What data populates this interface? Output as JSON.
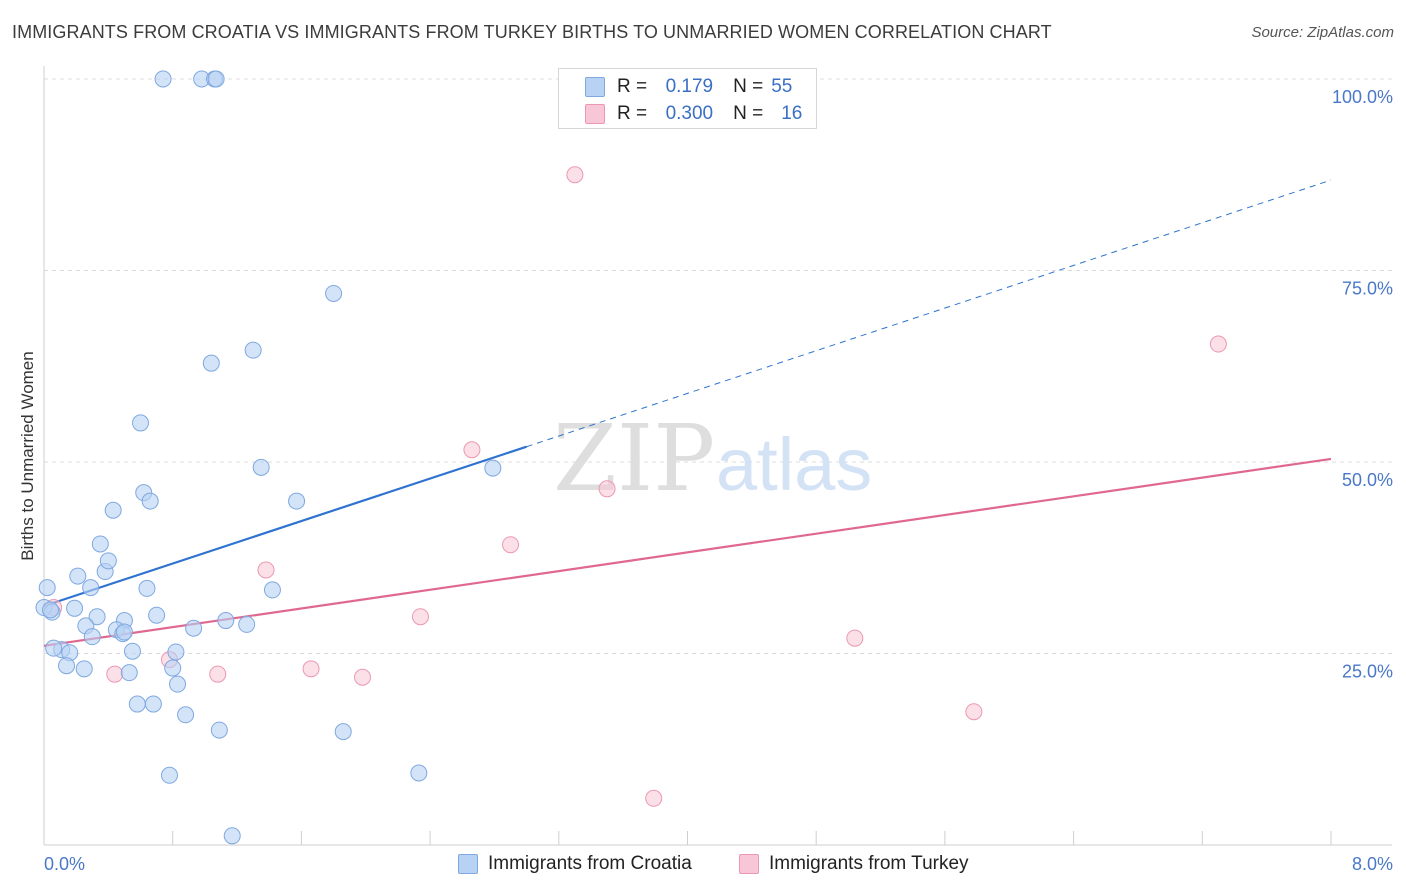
{
  "header": {
    "title": "IMMIGRANTS FROM CROATIA VS IMMIGRANTS FROM TURKEY BIRTHS TO UNMARRIED WOMEN CORRELATION CHART",
    "source": "Source: ZipAtlas.com"
  },
  "legend": {
    "r_label": "R =",
    "n_label": "N =",
    "croatia": {
      "r": "0.179",
      "n": "55"
    },
    "turkey": {
      "r": "0.300",
      "n": "16"
    }
  },
  "watermark": {
    "zip": "ZIP",
    "atlas": "atlas"
  },
  "colors": {
    "croatia_fill": "#b8d2f4",
    "croatia_stroke": "#7fa8e0",
    "croatia_line": "#2f73d0",
    "turkey_fill": "#f8c6d6",
    "turkey_stroke": "#ec98b4",
    "turkey_line": "#e06890",
    "tick_text": "#4a78c8",
    "grid": "#dcdcdc"
  },
  "chart_data": {
    "type": "scatter",
    "title": "IMMIGRANTS FROM CROATIA VS IMMIGRANTS FROM TURKEY BIRTHS TO UNMARRIED WOMEN CORRELATION CHART",
    "xlabel": "",
    "ylabel": "Births to Unmarried Women",
    "xlim": [
      0,
      8
    ],
    "ylim": [
      0,
      100
    ],
    "x_ticks": [
      0,
      8
    ],
    "x_tick_labels": [
      "0.0%",
      "8.0%"
    ],
    "y_ticks": [
      25,
      50,
      75,
      100
    ],
    "y_tick_labels": [
      "25.0%",
      "50.0%",
      "75.0%",
      "100.0%"
    ],
    "grid": true,
    "legend_position": "top-center",
    "series": [
      {
        "name": "Immigrants from Croatia",
        "points": [
          [
            0.74,
            100
          ],
          [
            0.98,
            100
          ],
          [
            1.06,
            100
          ],
          [
            1.07,
            100
          ],
          [
            1.8,
            72
          ],
          [
            1.3,
            64.6
          ],
          [
            1.04,
            62.9
          ],
          [
            0.6,
            55.1
          ],
          [
            1.35,
            49.3
          ],
          [
            2.79,
            49.2
          ],
          [
            0.62,
            46
          ],
          [
            0.66,
            44.9
          ],
          [
            1.57,
            44.9
          ],
          [
            0.43,
            43.7
          ],
          [
            0.35,
            39.3
          ],
          [
            0.38,
            35.7
          ],
          [
            0.4,
            37.1
          ],
          [
            0.21,
            35.1
          ],
          [
            0.64,
            33.5
          ],
          [
            0.29,
            33.6
          ],
          [
            1.42,
            33.3
          ],
          [
            0.02,
            33.6
          ],
          [
            0.0,
            31.0
          ],
          [
            0.05,
            30.4
          ],
          [
            0.19,
            30.9
          ],
          [
            0.33,
            29.8
          ],
          [
            0.7,
            30.0
          ],
          [
            0.5,
            29.3
          ],
          [
            1.13,
            29.3
          ],
          [
            0.26,
            28.6
          ],
          [
            0.93,
            28.3
          ],
          [
            0.45,
            28.1
          ],
          [
            1.26,
            28.8
          ],
          [
            0.49,
            27.6
          ],
          [
            0.3,
            27.2
          ],
          [
            0.11,
            25.5
          ],
          [
            0.16,
            25.1
          ],
          [
            0.55,
            25.3
          ],
          [
            0.82,
            25.2
          ],
          [
            0.14,
            23.4
          ],
          [
            0.8,
            23.1
          ],
          [
            0.25,
            23.0
          ],
          [
            0.53,
            22.5
          ],
          [
            0.83,
            21.0
          ],
          [
            0.58,
            18.4
          ],
          [
            0.68,
            18.4
          ],
          [
            0.88,
            17.0
          ],
          [
            1.09,
            15.0
          ],
          [
            1.86,
            14.8
          ],
          [
            0.78,
            9.1
          ],
          [
            2.33,
            9.4
          ],
          [
            1.17,
            1.2
          ],
          [
            0.06,
            25.7
          ],
          [
            0.5,
            27.8
          ],
          [
            0.04,
            30.7
          ]
        ],
        "trend": {
          "x": [
            0,
            3.0
          ],
          "y": [
            31.2,
            52.0
          ],
          "style": "solid"
        },
        "trend_extension": {
          "x": [
            3.0,
            8.0
          ],
          "y": [
            52.0,
            86.8
          ],
          "style": "dashed"
        }
      },
      {
        "name": "Immigrants from Turkey",
        "points": [
          [
            3.3,
            87.5
          ],
          [
            7.3,
            65.4
          ],
          [
            2.66,
            51.6
          ],
          [
            3.5,
            46.5
          ],
          [
            2.9,
            39.2
          ],
          [
            1.38,
            35.9
          ],
          [
            2.34,
            29.8
          ],
          [
            0.06,
            31.0
          ],
          [
            5.04,
            27.0
          ],
          [
            0.78,
            24.2
          ],
          [
            1.66,
            23.0
          ],
          [
            0.44,
            22.3
          ],
          [
            1.08,
            22.3
          ],
          [
            1.98,
            21.9
          ],
          [
            5.78,
            17.4
          ],
          [
            3.79,
            6.1
          ]
        ],
        "trend": {
          "x": [
            0,
            8.0
          ],
          "y": [
            26.0,
            50.4
          ],
          "style": "solid"
        }
      }
    ]
  }
}
